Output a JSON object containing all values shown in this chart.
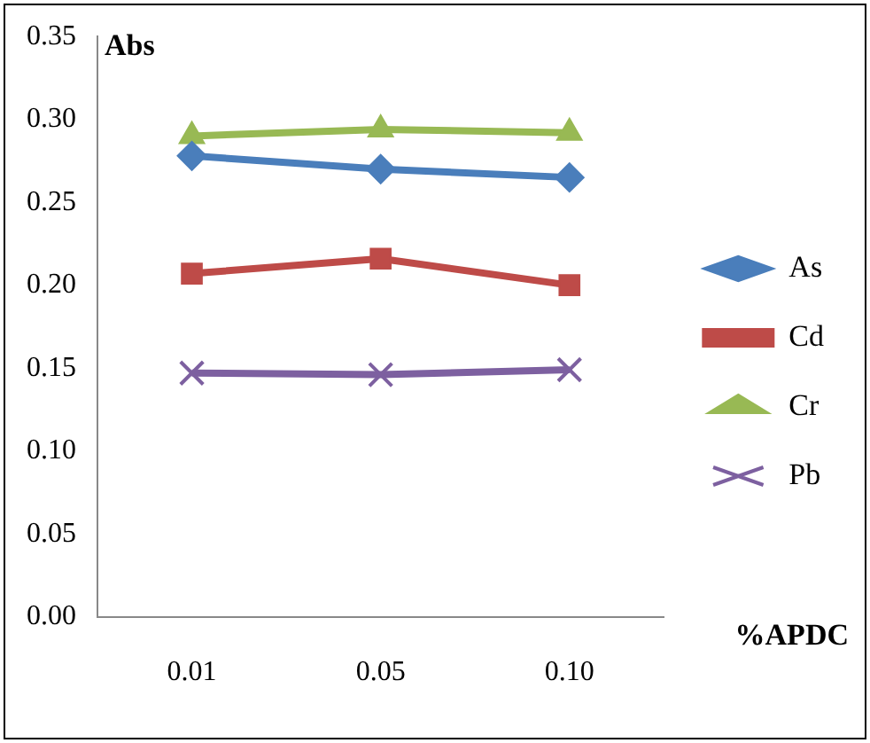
{
  "chart_data": {
    "type": "line",
    "ylabel": "Abs",
    "xlabel": "%APDC",
    "categories": [
      "0.01",
      "0.05",
      "0.10"
    ],
    "ylim": [
      0,
      0.35
    ],
    "yticks": [
      {
        "value": 0,
        "label": "0.00"
      },
      {
        "value": 0.05,
        "label": "0.05"
      },
      {
        "value": 0.1,
        "label": "0.10"
      },
      {
        "value": 0.15,
        "label": "0.15"
      },
      {
        "value": 0.2,
        "label": "0.20"
      },
      {
        "value": 0.25,
        "label": "0.25"
      },
      {
        "value": 0.3,
        "label": "0.30"
      },
      {
        "value": 0.35,
        "label": "0.35"
      }
    ],
    "grid": false,
    "legend": "right",
    "line_style": "solid",
    "series": [
      {
        "name": "As",
        "color": "#4a7ebb",
        "marker": "diamond",
        "values": [
          0.278,
          0.27,
          0.265
        ]
      },
      {
        "name": "Cd",
        "color": "#be4b48",
        "marker": "square",
        "values": [
          0.207,
          0.216,
          0.2
        ]
      },
      {
        "name": "Cr",
        "color": "#98b954",
        "marker": "triangle",
        "values": [
          0.29,
          0.294,
          0.292
        ]
      },
      {
        "name": "Pb",
        "color": "#7d60a0",
        "marker": "cross",
        "values": [
          0.147,
          0.146,
          0.149
        ]
      }
    ]
  }
}
